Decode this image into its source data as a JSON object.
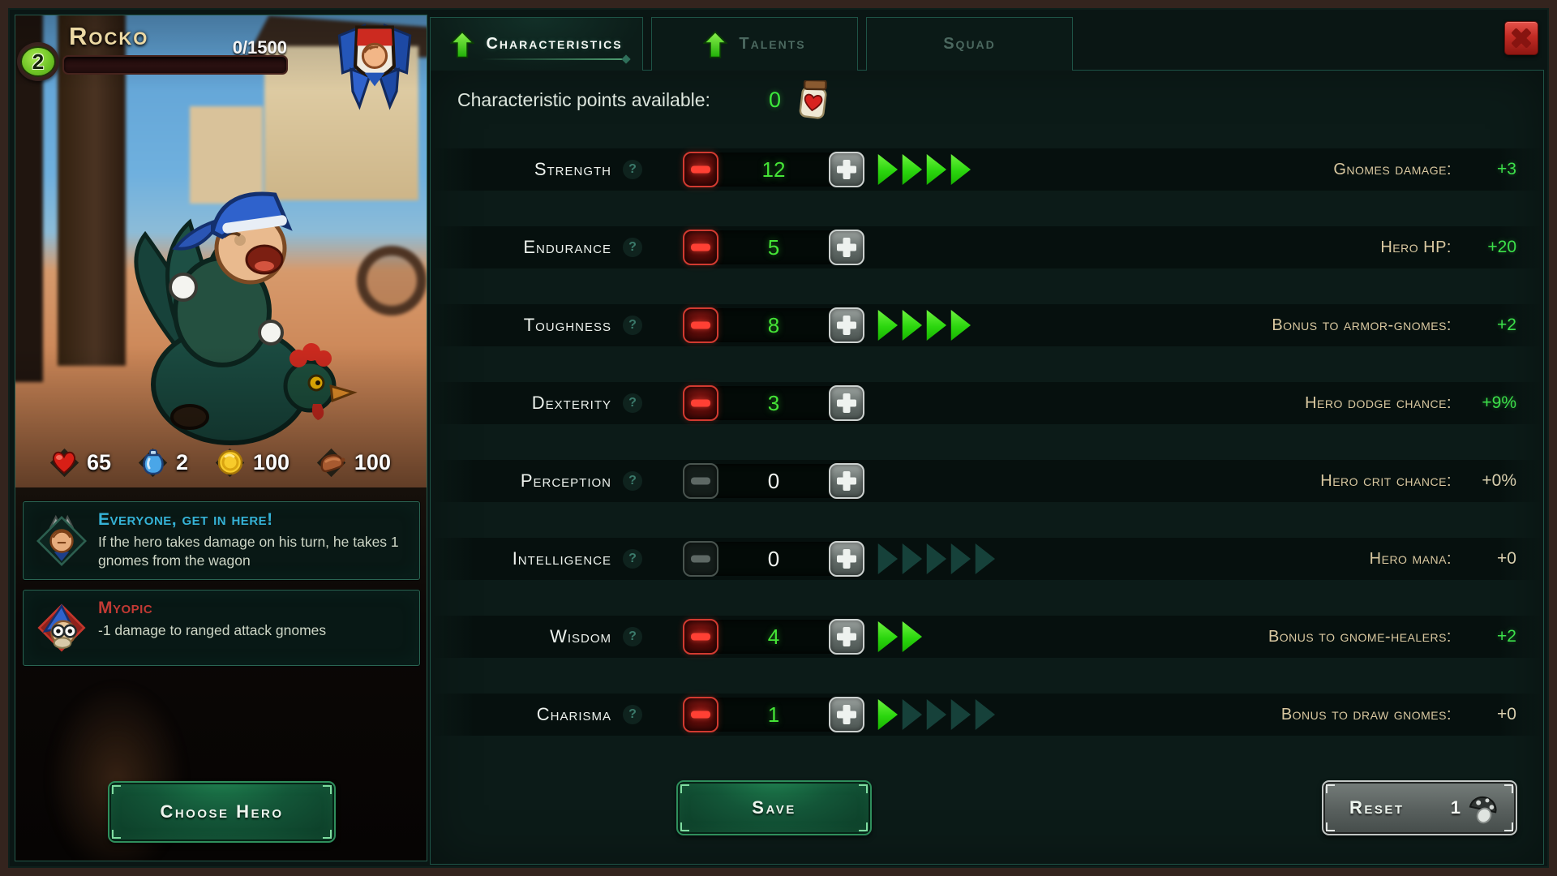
{
  "hero": {
    "name": "Rocko",
    "level": "2",
    "xp": "0/1500",
    "resources": [
      {
        "icon": "health-icon",
        "value": "65"
      },
      {
        "icon": "potion-icon",
        "value": "2"
      },
      {
        "icon": "coin-icon",
        "value": "100"
      },
      {
        "icon": "sausage-icon",
        "value": "100"
      }
    ],
    "ability": {
      "title": "Everyone, get in here!",
      "description": "If the hero takes damage on his turn, he takes 1 gnomes from the wagon"
    },
    "trait": {
      "title": "Myopic",
      "description": "-1 damage to ranged attack gnomes"
    },
    "choose_button": "Choose Hero"
  },
  "tabs": [
    {
      "label": "Characteristics",
      "active": true,
      "has_arrow": true
    },
    {
      "label": "Talents",
      "active": false,
      "has_arrow": true
    },
    {
      "label": "Squad",
      "active": false,
      "has_arrow": false
    }
  ],
  "points": {
    "label": "Characteristic points available:",
    "value": "0"
  },
  "stats": [
    {
      "name": "Strength",
      "value": "12",
      "minus_enabled": true,
      "arrows_bright": 4,
      "arrows_dim": 0,
      "effect_label": "Gnomes damage:",
      "effect_value": "+3",
      "effect_positive": true
    },
    {
      "name": "Endurance",
      "value": "5",
      "minus_enabled": true,
      "arrows_bright": 0,
      "arrows_dim": 0,
      "effect_label": "Hero HP:",
      "effect_value": "+20",
      "effect_positive": true
    },
    {
      "name": "Toughness",
      "value": "8",
      "minus_enabled": true,
      "arrows_bright": 4,
      "arrows_dim": 0,
      "effect_label": "Bonus to armor-gnomes:",
      "effect_value": "+2",
      "effect_positive": true
    },
    {
      "name": "Dexterity",
      "value": "3",
      "minus_enabled": true,
      "arrows_bright": 0,
      "arrows_dim": 0,
      "effect_label": "Hero dodge chance:",
      "effect_value": "+9%",
      "effect_positive": true
    },
    {
      "name": "Perception",
      "value": "0",
      "minus_enabled": false,
      "arrows_bright": 0,
      "arrows_dim": 0,
      "effect_label": "Hero crit chance:",
      "effect_value": "+0%",
      "effect_positive": false
    },
    {
      "name": "Intelligence",
      "value": "0",
      "minus_enabled": false,
      "arrows_bright": 0,
      "arrows_dim": 5,
      "effect_label": "Hero mana:",
      "effect_value": "+0",
      "effect_positive": false
    },
    {
      "name": "Wisdom",
      "value": "4",
      "minus_enabled": true,
      "arrows_bright": 2,
      "arrows_dim": 0,
      "effect_label": "Bonus to gnome-healers:",
      "effect_value": "+2",
      "effect_positive": true
    },
    {
      "name": "Charisma",
      "value": "1",
      "minus_enabled": true,
      "arrows_bright": 1,
      "arrows_dim": 4,
      "effect_label": "Bonus to draw gnomes:",
      "effect_value": "+0",
      "effect_positive": false
    }
  ],
  "save_button": "Save",
  "reset": {
    "label": "Reset",
    "count": "1"
  },
  "colors": {
    "accent_green": "#3ce83c",
    "label_tan": "#d9c8a0",
    "ability_cyan": "#35b2d6",
    "trait_red": "#c23a34"
  }
}
